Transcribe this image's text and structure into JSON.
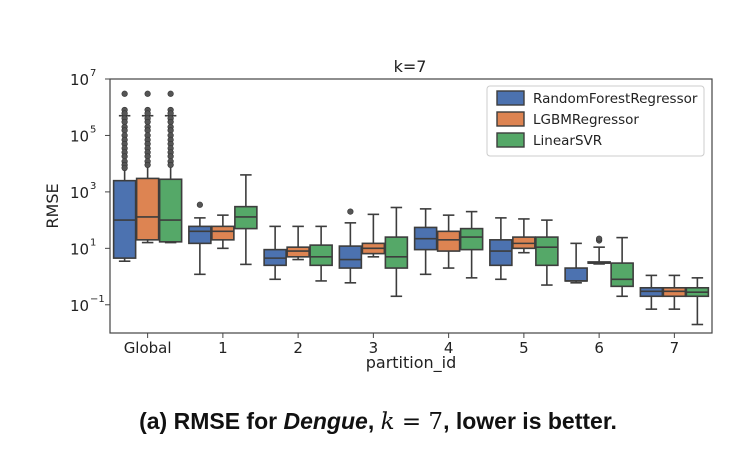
{
  "chart_data": {
    "type": "box",
    "title": "k=7",
    "xlabel": "partition_id",
    "ylabel": "RMSE",
    "yscale": "log",
    "ylim": [
      0.01,
      10000000
    ],
    "yticks": [
      {
        "value": 0.1,
        "base": "10",
        "exp": "−1"
      },
      {
        "value": 10,
        "base": "10",
        "exp": "1"
      },
      {
        "value": 1000,
        "base": "10",
        "exp": "3"
      },
      {
        "value": 100000,
        "base": "10",
        "exp": "5"
      },
      {
        "value": 10000000,
        "base": "10",
        "exp": "7"
      }
    ],
    "grid": false,
    "legend_position": "top-right",
    "categories": [
      "Global",
      "1",
      "2",
      "3",
      "4",
      "5",
      "6",
      "7"
    ],
    "series": [
      {
        "name": "RandomForestRegressor",
        "color": "#4c72b0",
        "boxes": [
          {
            "whislo": 3.5,
            "q1": 4.5,
            "med": 100,
            "q3": 2500,
            "whishi": 500000,
            "fliers": [
              3000000,
              800000,
              600000,
              400000,
              300000,
              200000,
              150000,
              100000,
              70000,
              50000,
              35000,
              25000,
              18000,
              12000,
              9000,
              7000
            ]
          },
          {
            "whislo": 1.2,
            "q1": 15,
            "med": 40,
            "q3": 60,
            "whishi": 120,
            "fliers": [
              350
            ]
          },
          {
            "whislo": 0.8,
            "q1": 2.5,
            "med": 4.5,
            "q3": 9,
            "whishi": 60,
            "fliers": []
          },
          {
            "whislo": 0.6,
            "q1": 2,
            "med": 4,
            "q3": 12,
            "whishi": 80,
            "fliers": [
              200
            ]
          },
          {
            "whislo": 1.2,
            "q1": 9,
            "med": 22,
            "q3": 55,
            "whishi": 250,
            "fliers": []
          },
          {
            "whislo": 0.8,
            "q1": 2.5,
            "med": 8,
            "q3": 20,
            "whishi": 120,
            "fliers": []
          },
          {
            "whislo": 0.6,
            "q1": 0.7,
            "med": 0.7,
            "q3": 2,
            "whishi": 15,
            "fliers": []
          },
          {
            "whislo": 0.07,
            "q1": 0.2,
            "med": 0.3,
            "q3": 0.4,
            "whishi": 1.1,
            "fliers": []
          }
        ]
      },
      {
        "name": "LGBMRegressor",
        "color": "#dd8452",
        "boxes": [
          {
            "whislo": 16,
            "q1": 20,
            "med": 130,
            "q3": 3000,
            "whishi": 500000,
            "fliers": [
              3000000,
              800000,
              600000,
              400000,
              300000,
              200000,
              150000,
              100000,
              70000,
              50000,
              35000,
              25000,
              18000,
              12000,
              9000
            ]
          },
          {
            "whislo": 10,
            "q1": 20,
            "med": 40,
            "q3": 60,
            "whishi": 150,
            "fliers": []
          },
          {
            "whislo": 4,
            "q1": 5,
            "med": 8,
            "q3": 11,
            "whishi": 60,
            "fliers": []
          },
          {
            "whislo": 5,
            "q1": 6.5,
            "med": 10,
            "q3": 15,
            "whishi": 160,
            "fliers": []
          },
          {
            "whislo": 2,
            "q1": 8,
            "med": 20,
            "q3": 40,
            "whishi": 150,
            "fliers": []
          },
          {
            "whislo": 7,
            "q1": 10,
            "med": 15,
            "q3": 25,
            "whishi": 110,
            "fliers": []
          },
          {
            "whislo": 2.8,
            "q1": 3,
            "med": 3,
            "q3": 3.3,
            "whishi": 11,
            "fliers": [
              19,
              22
            ]
          },
          {
            "whislo": 0.07,
            "q1": 0.2,
            "med": 0.3,
            "q3": 0.4,
            "whishi": 1.1,
            "fliers": []
          }
        ]
      },
      {
        "name": "LinearSVR",
        "color": "#55a868",
        "boxes": [
          {
            "whislo": 16,
            "q1": 17,
            "med": 100,
            "q3": 2800,
            "whishi": 500000,
            "fliers": [
              3000000,
              800000,
              600000,
              400000,
              300000,
              200000,
              150000,
              100000,
              70000,
              50000,
              35000,
              25000,
              18000,
              12000,
              9000
            ]
          },
          {
            "whislo": 2.7,
            "q1": 50,
            "med": 130,
            "q3": 300,
            "whishi": 4000,
            "fliers": []
          },
          {
            "whislo": 0.7,
            "q1": 2.5,
            "med": 5,
            "q3": 13,
            "whishi": 60,
            "fliers": []
          },
          {
            "whislo": 0.2,
            "q1": 2,
            "med": 5,
            "q3": 25,
            "whishi": 280,
            "fliers": []
          },
          {
            "whislo": 0.9,
            "q1": 9,
            "med": 25,
            "q3": 50,
            "whishi": 200,
            "fliers": []
          },
          {
            "whislo": 0.5,
            "q1": 2.5,
            "med": 11,
            "q3": 25,
            "whishi": 100,
            "fliers": []
          },
          {
            "whislo": 0.2,
            "q1": 0.45,
            "med": 0.8,
            "q3": 3,
            "whishi": 24,
            "fliers": []
          },
          {
            "whislo": 0.02,
            "q1": 0.2,
            "med": 0.28,
            "q3": 0.4,
            "whishi": 0.9,
            "fliers": []
          }
        ]
      }
    ]
  },
  "caption": {
    "prefix": "(a) RMSE for ",
    "dataset": "Dengue",
    "comma1": ", ",
    "kvar": "k",
    "eq": " = 7",
    "suffix": ", lower is better."
  }
}
